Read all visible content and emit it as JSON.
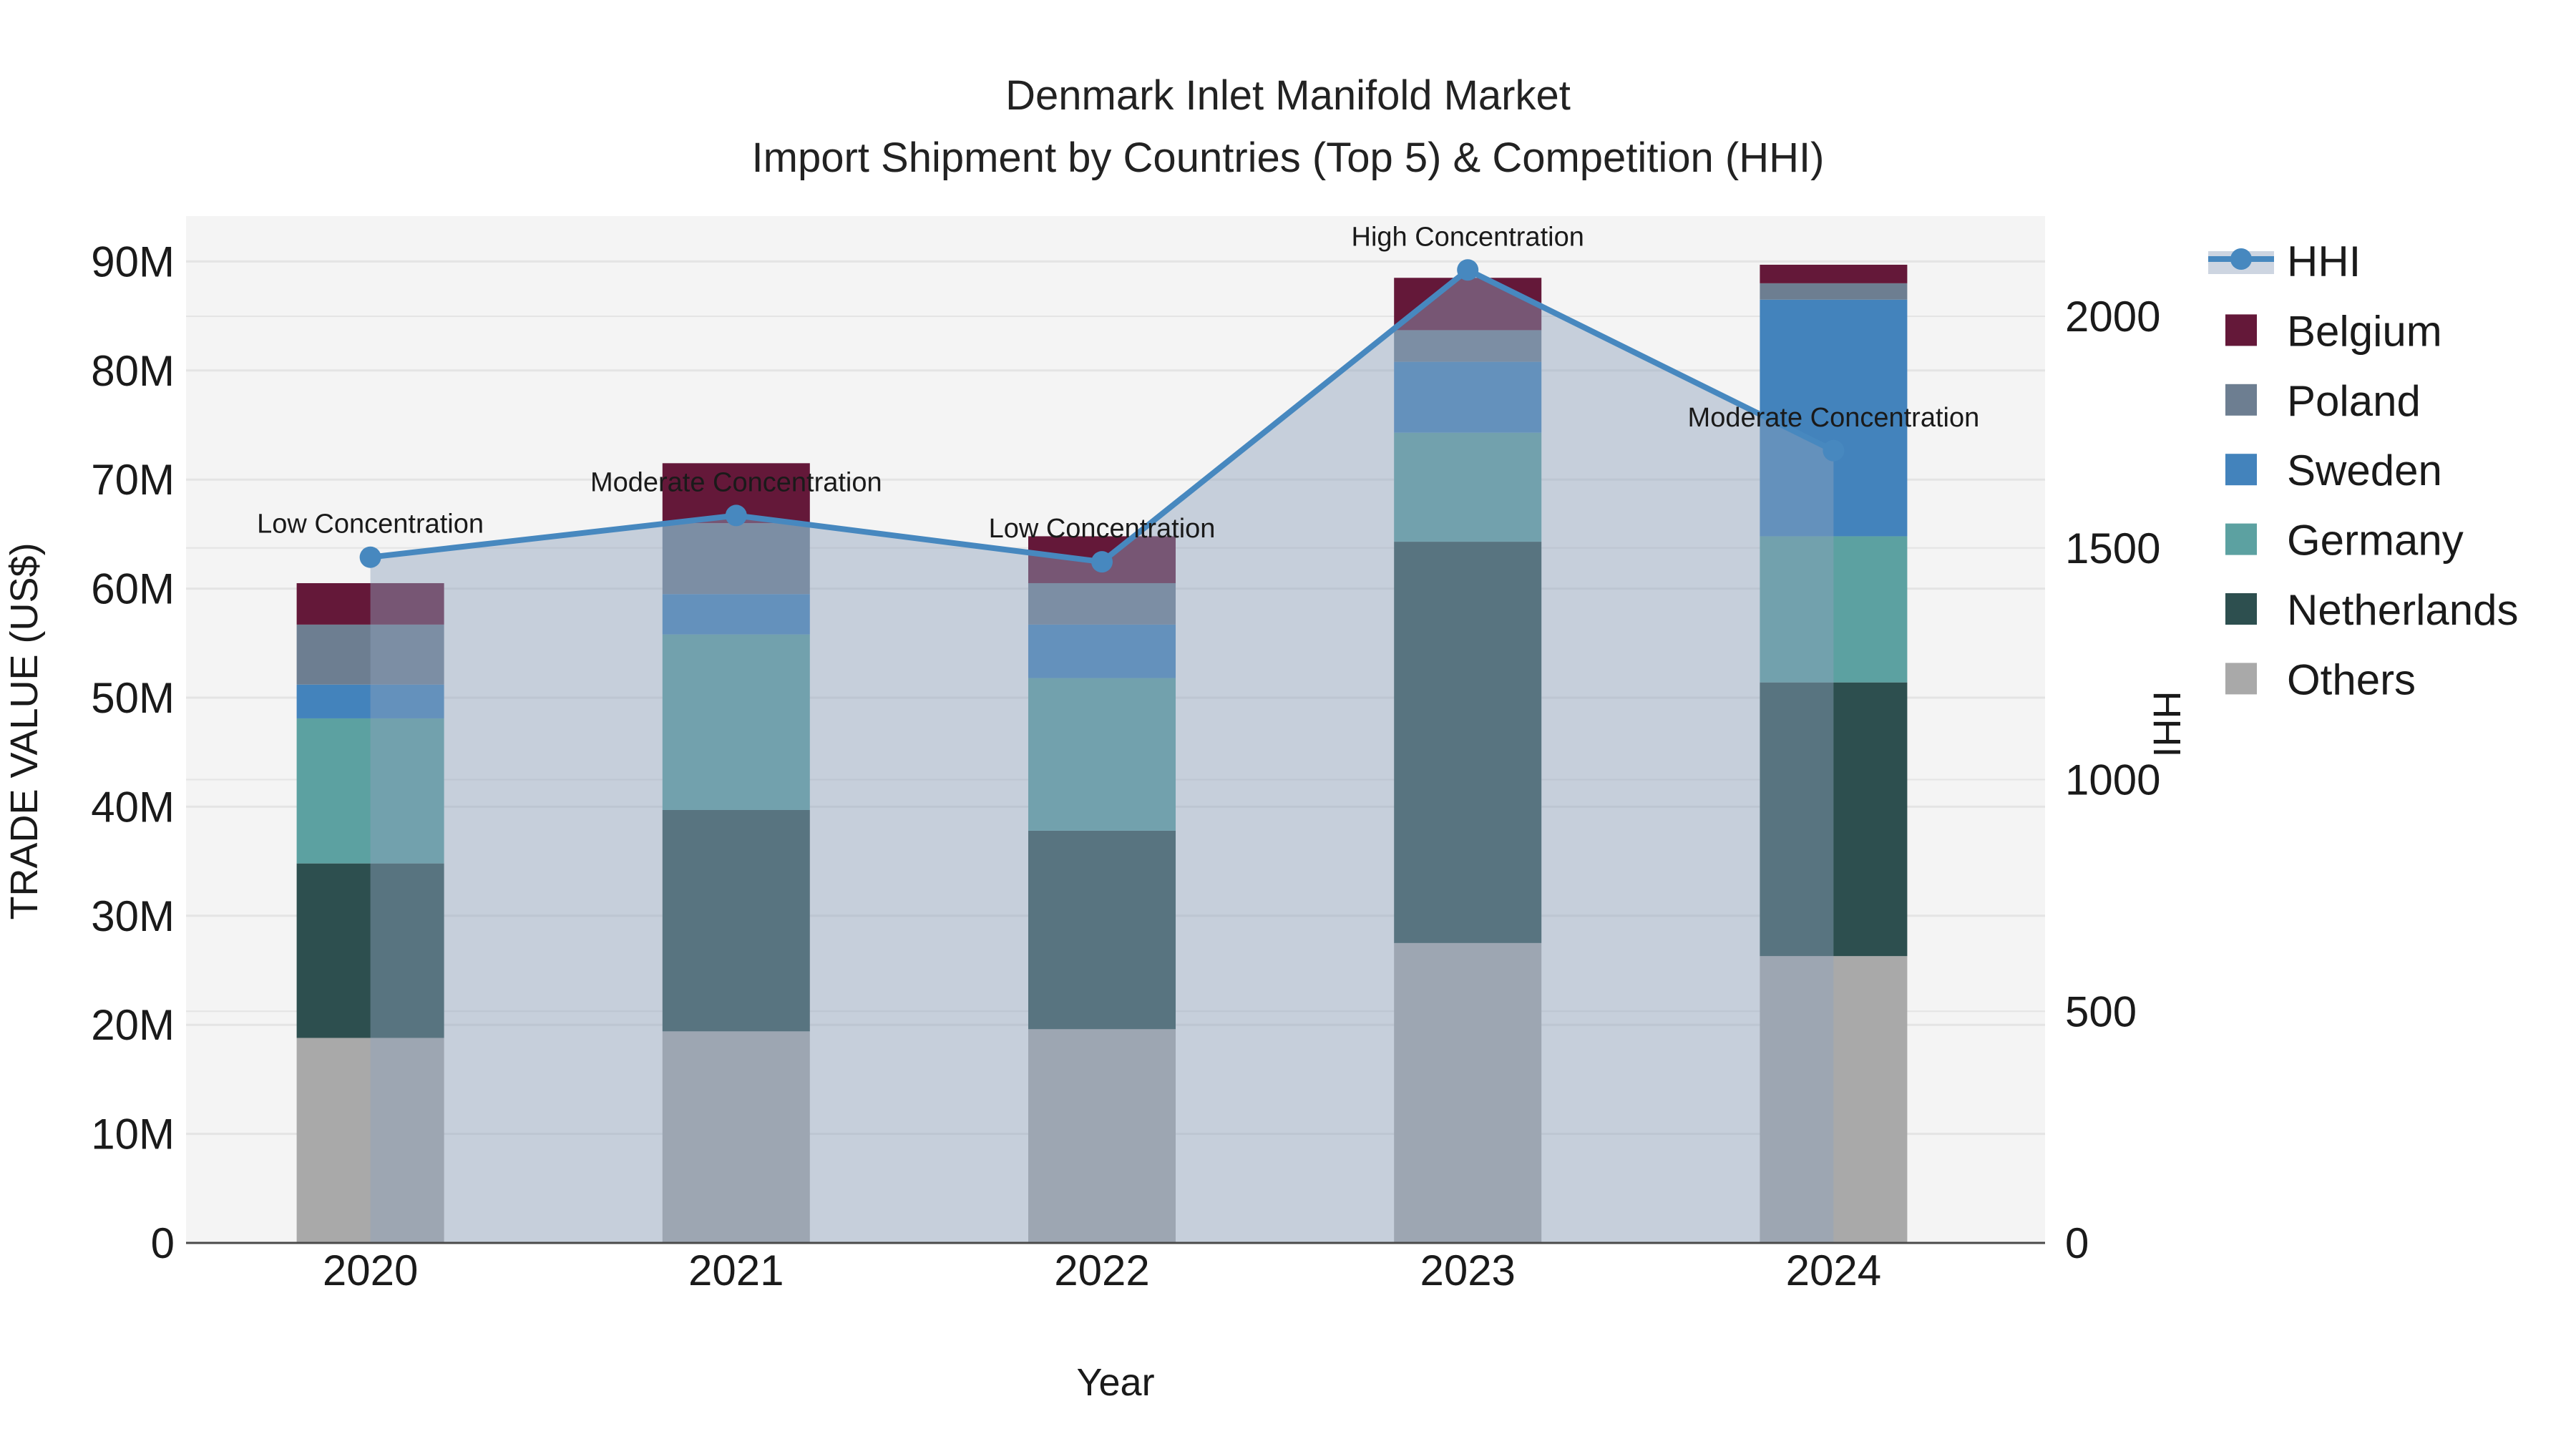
{
  "title": {
    "line1": "Denmark Inlet Manifold Market",
    "line2": "Import Shipment by Countries (Top 5) & Competition (HHI)"
  },
  "chart_data": {
    "type": "combo: stacked-bar + line-with-area (dual y-axis)",
    "categories": [
      "2020",
      "2021",
      "2022",
      "2023",
      "2024"
    ],
    "bar_unit": "million US$",
    "series": [
      {
        "name": "Others",
        "color": "#a9a9a9",
        "values": [
          18.8,
          19.4,
          19.6,
          27.5,
          26.3
        ]
      },
      {
        "name": "Netherlands",
        "color": "#2d4f4f",
        "values": [
          16.0,
          20.3,
          18.2,
          36.8,
          25.1
        ]
      },
      {
        "name": "Germany",
        "color": "#5ca1a1",
        "values": [
          13.3,
          16.1,
          14.0,
          10.0,
          13.4
        ]
      },
      {
        "name": "Sweden",
        "color": "#4383bc",
        "values": [
          3.1,
          3.7,
          4.9,
          6.5,
          21.7
        ]
      },
      {
        "name": "Poland",
        "color": "#6d7e91",
        "values": [
          5.5,
          6.5,
          3.8,
          2.9,
          1.5
        ]
      },
      {
        "name": "Belgium",
        "color": "#641839",
        "values": [
          3.8,
          5.5,
          4.3,
          4.8,
          1.7
        ]
      }
    ],
    "bar_totals": [
      60.5,
      71.5,
      64.8,
      88.5,
      89.7
    ],
    "line_series": {
      "name": "HHI",
      "color": "#4788bf",
      "area_fill": "rgba(143,162,189,0.45)",
      "legend_band_color": "#cdd5e1",
      "values": [
        1480,
        1570,
        1470,
        2100,
        1710
      ]
    },
    "annotations": [
      {
        "category": "2020",
        "text": "Low Concentration"
      },
      {
        "category": "2021",
        "text": "Moderate Concentration"
      },
      {
        "category": "2022",
        "text": "Low Concentration"
      },
      {
        "category": "2023",
        "text": "High Concentration"
      },
      {
        "category": "2024",
        "text": "Moderate Concentration"
      }
    ],
    "axes": {
      "x": {
        "title": "Year",
        "tick_labels": [
          "2020",
          "2021",
          "2022",
          "2023",
          "2024"
        ]
      },
      "y_left": {
        "title": "TRADE VALUE (US$)",
        "tick_labels": [
          "0",
          "10M",
          "20M",
          "30M",
          "40M",
          "50M",
          "60M",
          "70M",
          "80M",
          "90M"
        ],
        "tick_values": [
          0,
          10,
          20,
          30,
          40,
          50,
          60,
          70,
          80,
          90
        ]
      },
      "y_right": {
        "title": "HHI",
        "tick_labels": [
          "0",
          "500",
          "1000",
          "1500",
          "2000"
        ],
        "tick_values": [
          0,
          500,
          1000,
          1500,
          2000
        ]
      }
    },
    "legend": {
      "items": [
        "HHI",
        "Belgium",
        "Poland",
        "Sweden",
        "Germany",
        "Netherlands",
        "Others"
      ],
      "position": "right"
    },
    "grid": true
  },
  "colors": {
    "plot_bg": "#f4f4f4",
    "grid": "#e4e4e4",
    "axis_line": "#4a4a4a",
    "text": "#1a1a1a"
  }
}
